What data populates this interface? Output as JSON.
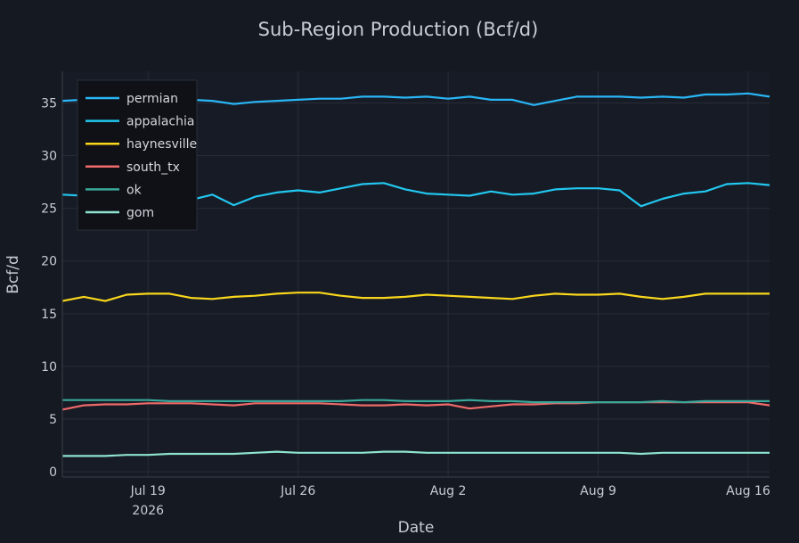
{
  "chart_data": {
    "type": "line",
    "title": "Sub-Region Production (Bcf/d)",
    "xlabel": "Date",
    "ylabel": "Bcf/d",
    "x_start": "2026-07-15",
    "x": [
      "2026-07-15",
      "2026-07-16",
      "2026-07-17",
      "2026-07-18",
      "2026-07-19",
      "2026-07-20",
      "2026-07-21",
      "2026-07-22",
      "2026-07-23",
      "2026-07-24",
      "2026-07-25",
      "2026-07-26",
      "2026-07-27",
      "2026-07-28",
      "2026-07-29",
      "2026-07-30",
      "2026-07-31",
      "2026-08-01",
      "2026-08-02",
      "2026-08-03",
      "2026-08-04",
      "2026-08-05",
      "2026-08-06",
      "2026-08-07",
      "2026-08-08",
      "2026-08-09",
      "2026-08-10",
      "2026-08-11",
      "2026-08-12",
      "2026-08-13",
      "2026-08-14",
      "2026-08-15",
      "2026-08-16",
      "2026-08-17"
    ],
    "xlim": [
      "2026-07-15",
      "2026-08-17"
    ],
    "ylim": [
      -0.5,
      38
    ],
    "x_ticks": [
      {
        "date": "2026-07-19",
        "label": "Jul 19",
        "sublabel": "2026"
      },
      {
        "date": "2026-07-26",
        "label": "Jul 26",
        "sublabel": ""
      },
      {
        "date": "2026-08-02",
        "label": "Aug 2",
        "sublabel": ""
      },
      {
        "date": "2026-08-09",
        "label": "Aug 9",
        "sublabel": ""
      },
      {
        "date": "2026-08-16",
        "label": "Aug 16",
        "sublabel": ""
      }
    ],
    "y_ticks": [
      0,
      5,
      10,
      15,
      20,
      25,
      30,
      35
    ],
    "grid": true,
    "legend_position": "top-left",
    "series": [
      {
        "name": "permian",
        "color": "#29b6f6",
        "values": [
          35.2,
          35.3,
          35.2,
          35.3,
          35.4,
          35.3,
          35.3,
          35.2,
          34.9,
          35.1,
          35.2,
          35.3,
          35.4,
          35.4,
          35.6,
          35.6,
          35.5,
          35.6,
          35.4,
          35.6,
          35.3,
          35.3,
          34.8,
          35.2,
          35.6,
          35.6,
          35.6,
          35.5,
          35.6,
          35.5,
          35.8,
          35.8,
          35.9,
          35.6
        ]
      },
      {
        "name": "appalachia",
        "color": "#22c7f0",
        "values": [
          26.3,
          26.2,
          26.3,
          26.4,
          26.1,
          25.9,
          25.8,
          26.3,
          25.3,
          26.1,
          26.5,
          26.7,
          26.5,
          26.9,
          27.3,
          27.4,
          26.8,
          26.4,
          26.3,
          26.2,
          26.6,
          26.3,
          26.4,
          26.8,
          26.9,
          26.9,
          26.7,
          25.2,
          25.9,
          26.4,
          26.6,
          27.3,
          27.4,
          27.2
        ]
      },
      {
        "name": "haynesville",
        "color": "#f9d71c",
        "values": [
          16.2,
          16.6,
          16.2,
          16.8,
          16.9,
          16.9,
          16.5,
          16.4,
          16.6,
          16.7,
          16.9,
          17.0,
          17.0,
          16.7,
          16.5,
          16.5,
          16.6,
          16.8,
          16.7,
          16.6,
          16.5,
          16.4,
          16.7,
          16.9,
          16.8,
          16.8,
          16.9,
          16.6,
          16.4,
          16.6,
          16.9,
          16.9,
          16.9,
          16.9
        ]
      },
      {
        "name": "south_tx",
        "color": "#ef6a6a",
        "values": [
          5.9,
          6.3,
          6.4,
          6.4,
          6.5,
          6.5,
          6.5,
          6.4,
          6.3,
          6.5,
          6.5,
          6.5,
          6.5,
          6.4,
          6.3,
          6.3,
          6.4,
          6.3,
          6.4,
          6.0,
          6.2,
          6.4,
          6.4,
          6.5,
          6.5,
          6.6,
          6.6,
          6.6,
          6.6,
          6.6,
          6.6,
          6.6,
          6.6,
          6.3
        ]
      },
      {
        "name": "ok",
        "color": "#3aa89a",
        "values": [
          6.8,
          6.8,
          6.8,
          6.8,
          6.8,
          6.7,
          6.7,
          6.7,
          6.7,
          6.7,
          6.7,
          6.7,
          6.7,
          6.7,
          6.8,
          6.8,
          6.7,
          6.7,
          6.7,
          6.8,
          6.7,
          6.7,
          6.6,
          6.6,
          6.6,
          6.6,
          6.6,
          6.6,
          6.7,
          6.6,
          6.7,
          6.7,
          6.7,
          6.7
        ]
      },
      {
        "name": "gom",
        "color": "#8ee3cf",
        "values": [
          1.5,
          1.5,
          1.5,
          1.6,
          1.6,
          1.7,
          1.7,
          1.7,
          1.7,
          1.8,
          1.9,
          1.8,
          1.8,
          1.8,
          1.8,
          1.9,
          1.9,
          1.8,
          1.8,
          1.8,
          1.8,
          1.8,
          1.8,
          1.8,
          1.8,
          1.8,
          1.8,
          1.7,
          1.8,
          1.8,
          1.8,
          1.8,
          1.8,
          1.8
        ]
      }
    ]
  }
}
